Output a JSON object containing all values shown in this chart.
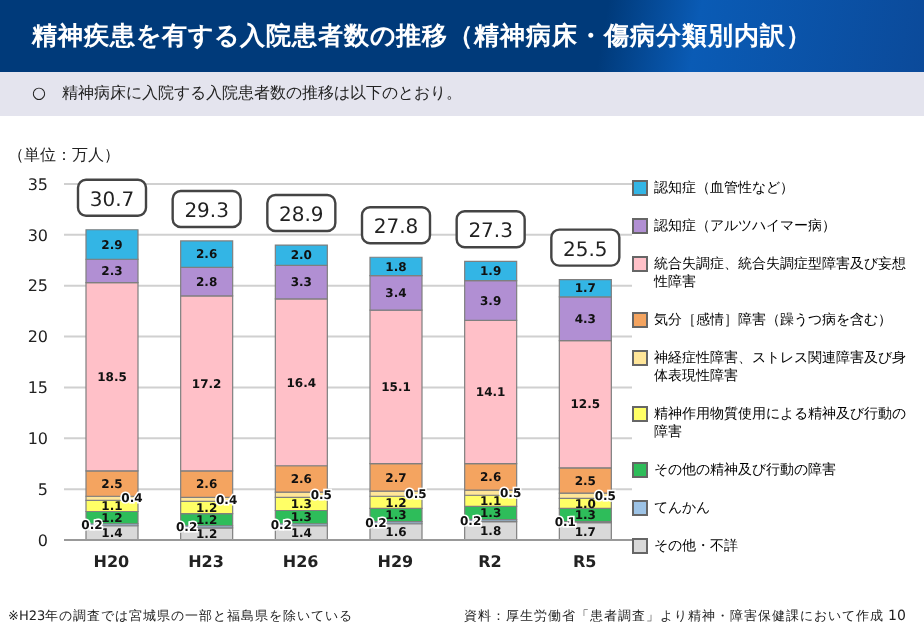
{
  "chart_data": {
    "type": "bar",
    "stacked": true,
    "title": "精神疾患を有する入院患者数の推移（精神病床・傷病分類別内訳）",
    "subtitle": "○　精神病床に入院する入院患者数の推移は以下のとおり。",
    "ylabel": "（単位：万人）",
    "categories": [
      "H20",
      "H23",
      "H26",
      "H29",
      "R2",
      "R5"
    ],
    "series": [
      {
        "name": "その他・不詳",
        "color": "#d9d9d9",
        "values": [
          1.4,
          1.2,
          1.4,
          1.6,
          1.8,
          1.7
        ],
        "value_labels": [
          "1.4",
          "1.2",
          "1.4",
          "1.6",
          "1.8",
          "1.7"
        ]
      },
      {
        "name": "てんかん",
        "color": "#9dc3e6",
        "values": [
          0.2,
          0.2,
          0.2,
          0.2,
          0.2,
          0.1
        ],
        "value_labels": [
          "0.2",
          "0.2",
          "0.2",
          "0.2",
          "0.2",
          "0.1"
        ]
      },
      {
        "name": "その他の精神及び行動の障害",
        "color": "#2ebd5a",
        "values": [
          1.2,
          1.2,
          1.3,
          1.3,
          1.3,
          1.3
        ],
        "value_labels": [
          "1.2",
          "1.2",
          "1.3",
          "1.3",
          "1.3",
          "1.3"
        ]
      },
      {
        "name": "精神作用物質使用による精神及び行動の障害",
        "color": "#ffff66",
        "values": [
          1.1,
          1.2,
          1.3,
          1.2,
          1.1,
          1.0
        ],
        "value_labels": [
          "1.1",
          "1.2",
          "1.3",
          "1.2",
          "1.1",
          "1.0"
        ]
      },
      {
        "name": "神経症性障害、ストレス関連障害及び身体表現性障害",
        "color": "#ffe699",
        "values": [
          0.4,
          0.4,
          0.5,
          0.5,
          0.5,
          0.5
        ],
        "value_labels": [
          "0.4",
          "0.4",
          "0.5",
          "0.5",
          "0.5",
          "0.5"
        ]
      },
      {
        "name": "気分［感情］障害（躁うつ病を含む）",
        "color": "#f4a460",
        "values": [
          2.5,
          2.6,
          2.6,
          2.7,
          2.6,
          2.5
        ],
        "value_labels": [
          "2.5",
          "2.6",
          "2.6",
          "2.7",
          "2.6",
          "2.5"
        ]
      },
      {
        "name": "統合失調症、統合失調症型障害及び妄想性障害",
        "color": "#ffc0c8",
        "values": [
          18.5,
          17.2,
          16.4,
          15.1,
          14.1,
          12.5
        ],
        "value_labels": [
          "18.5",
          "17.2",
          "16.4",
          "15.1",
          "14.1",
          "12.5"
        ]
      },
      {
        "name": "認知症（アルツハイマー病）",
        "color": "#b18fd3",
        "values": [
          2.3,
          2.8,
          3.3,
          3.4,
          3.9,
          4.3
        ],
        "value_labels": [
          "2.3",
          "2.8",
          "3.3",
          "3.4",
          "3.9",
          "4.3"
        ]
      },
      {
        "name": "認知症（血管性など）",
        "color": "#33b5e5",
        "values": [
          2.9,
          2.6,
          2.0,
          1.8,
          1.9,
          1.7
        ],
        "value_labels": [
          "2.9",
          "2.6",
          "2.0",
          "1.8",
          "1.9",
          "1.7"
        ]
      }
    ],
    "totals": [
      "30.7",
      "29.3",
      "28.9",
      "27.8",
      "27.3",
      "25.5"
    ],
    "ylim": [
      0,
      35
    ],
    "yticks": [
      0,
      5,
      10,
      15,
      20,
      25,
      30,
      35
    ],
    "grid": "y",
    "legend": "right",
    "annotations": [
      "※H23年の調査では宮城県の一部と福島県を除いている",
      "資料：厚生労働省「患者調査」より精神・障害保健課において作成",
      "10"
    ]
  }
}
